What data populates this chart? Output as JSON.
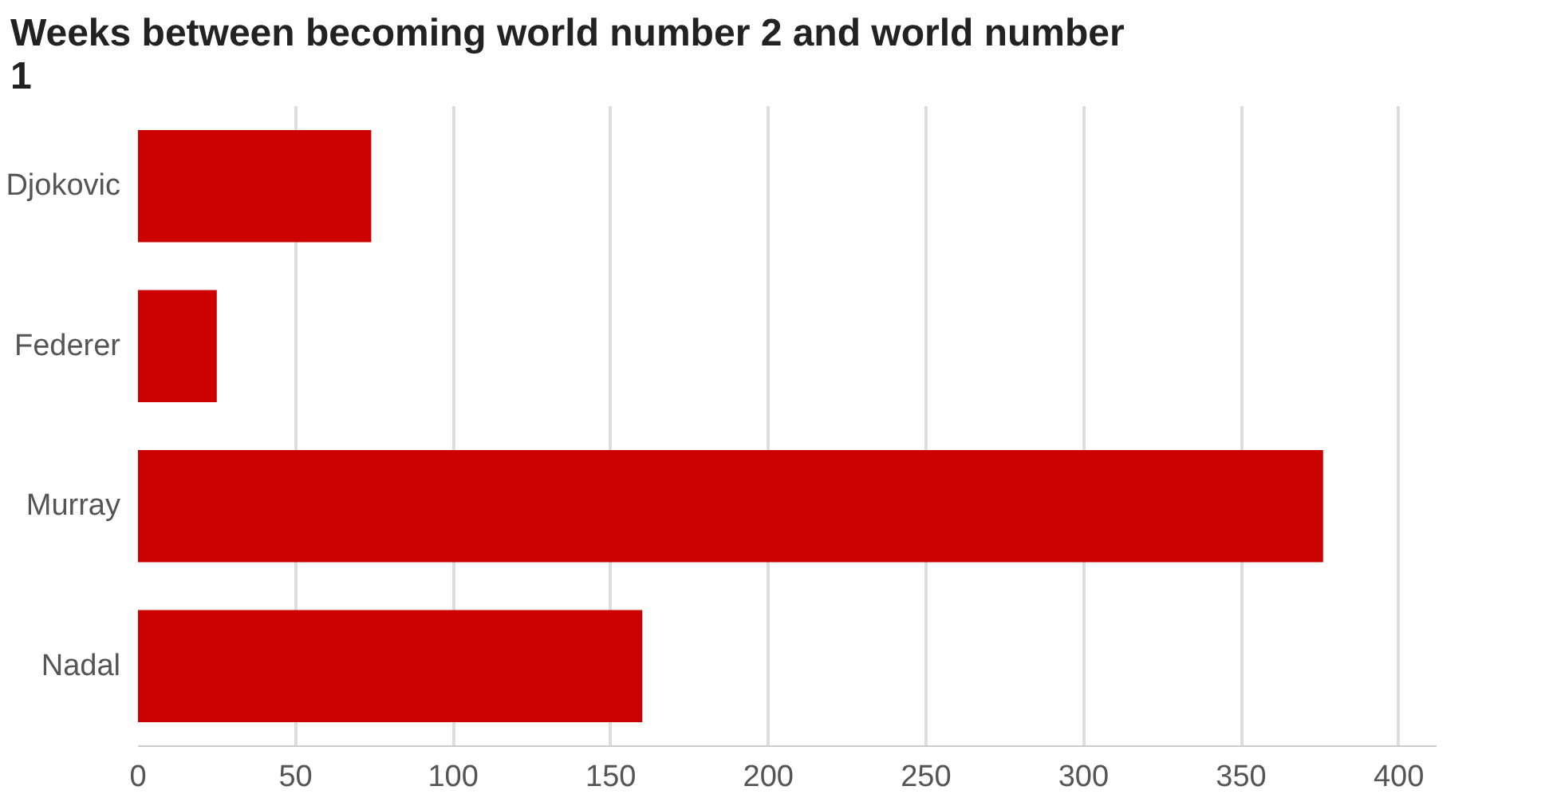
{
  "chart_data": {
    "type": "bar",
    "orientation": "horizontal",
    "title": "Weeks between becoming world number 2 and world number 1",
    "categories": [
      "Djokovic",
      "Federer",
      "Murray",
      "Nadal"
    ],
    "values": [
      74,
      25,
      376,
      160
    ],
    "color": "#cc0000",
    "xlim": [
      0,
      412
    ],
    "xticks": [
      0,
      50,
      100,
      150,
      200,
      250,
      300,
      350,
      400
    ],
    "grid": "x"
  }
}
